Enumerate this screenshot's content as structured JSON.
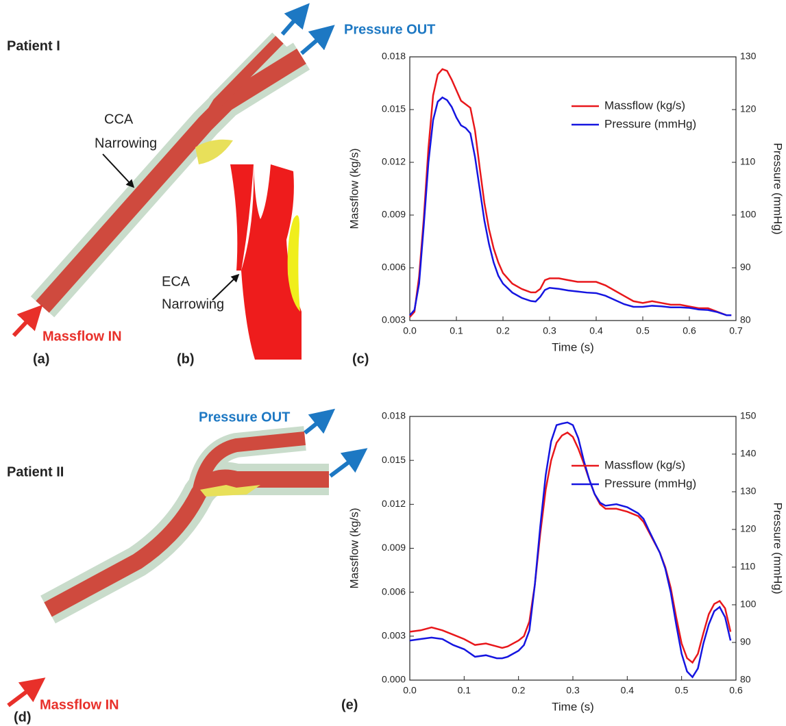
{
  "figure": {
    "patient1": "Patient I",
    "pressure_out_1": "Pressure OUT",
    "cca": [
      "CCA",
      "Narrowing"
    ],
    "eca": [
      "ECA",
      "Narrowing"
    ],
    "massflow_in_1": "Massflow IN",
    "label_a": "(a)",
    "label_b": "(b)",
    "label_c": "(c)",
    "patient2": "Patient II",
    "pressure_out_2": "Pressure OUT",
    "massflow_in_2": "Massflow IN",
    "label_d": "(d)",
    "label_e": "(e)"
  },
  "chart_data": [
    {
      "type": "line",
      "xlabel": "Time (s)",
      "ylabel": "Massflow (kg/s)",
      "y2label": "Pressure (mmHg)",
      "legend": "upper right",
      "x": [
        0,
        0.01,
        0.02,
        0.03,
        0.04,
        0.05,
        0.06,
        0.07,
        0.08,
        0.09,
        0.1,
        0.11,
        0.12,
        0.13,
        0.14,
        0.15,
        0.16,
        0.17,
        0.18,
        0.19,
        0.2,
        0.22,
        0.24,
        0.26,
        0.27,
        0.28,
        0.29,
        0.3,
        0.32,
        0.34,
        0.36,
        0.38,
        0.4,
        0.42,
        0.44,
        0.46,
        0.48,
        0.5,
        0.52,
        0.54,
        0.56,
        0.58,
        0.6,
        0.62,
        0.64,
        0.66,
        0.68,
        0.69
      ],
      "series": [
        {
          "name": "Massflow (kg/s)",
          "color": "#e8171b",
          "axis": "y",
          "values": [
            0.0032,
            0.0035,
            0.0055,
            0.0088,
            0.0128,
            0.0158,
            0.017,
            0.0173,
            0.0172,
            0.0167,
            0.0161,
            0.0155,
            0.0153,
            0.0151,
            0.0138,
            0.0117,
            0.0097,
            0.0082,
            0.0071,
            0.0063,
            0.0057,
            0.0051,
            0.0048,
            0.0046,
            0.0046,
            0.0048,
            0.0053,
            0.0054,
            0.0054,
            0.0053,
            0.0052,
            0.0052,
            0.0052,
            0.005,
            0.0047,
            0.0044,
            0.0041,
            0.004,
            0.0041,
            0.004,
            0.0039,
            0.0039,
            0.0038,
            0.0037,
            0.0037,
            0.0035,
            0.0033,
            0.0033
          ]
        },
        {
          "name": "Pressure (mmHg)",
          "color": "#1515e0",
          "axis": "y2",
          "values": [
            81,
            82,
            87,
            98,
            110,
            118,
            121.5,
            122.3,
            121.8,
            120.5,
            118.5,
            117,
            116.5,
            115.5,
            111,
            105,
            99,
            94.5,
            91,
            88.5,
            87,
            85.3,
            84.3,
            83.7,
            83.6,
            84.5,
            85.8,
            86.2,
            86,
            85.7,
            85.5,
            85.3,
            85.2,
            84.7,
            83.9,
            83.1,
            82.6,
            82.6,
            82.8,
            82.7,
            82.5,
            82.5,
            82.4,
            82.1,
            82,
            81.6,
            81,
            81
          ]
        }
      ],
      "xlim": [
        0,
        0.7
      ],
      "xticks": [
        {
          "value": 0,
          "label": "0.0"
        },
        0.1,
        0.2,
        0.3,
        0.4,
        0.5,
        0.6,
        0.7
      ],
      "ylim": [
        0.003,
        0.018
      ],
      "yticks": [
        0.003,
        0.006,
        0.009,
        0.012,
        0.015,
        0.018
      ],
      "y2lim": [
        80,
        130
      ],
      "y2ticks": [
        80,
        90,
        100,
        110,
        120,
        130
      ]
    },
    {
      "type": "line",
      "xlabel": "Time (s)",
      "ylabel": "Massflow (kg/s)",
      "y2label": "Pressure (mmHg)",
      "legend": "upper right",
      "x": [
        0,
        0.02,
        0.04,
        0.06,
        0.08,
        0.1,
        0.12,
        0.14,
        0.16,
        0.17,
        0.18,
        0.2,
        0.21,
        0.22,
        0.23,
        0.24,
        0.25,
        0.26,
        0.27,
        0.28,
        0.29,
        0.3,
        0.31,
        0.32,
        0.33,
        0.34,
        0.35,
        0.36,
        0.38,
        0.4,
        0.42,
        0.43,
        0.44,
        0.46,
        0.47,
        0.48,
        0.49,
        0.5,
        0.51,
        0.52,
        0.53,
        0.54,
        0.55,
        0.56,
        0.57,
        0.58,
        0.59
      ],
      "series": [
        {
          "name": "Massflow (kg/s)",
          "color": "#e8171b",
          "axis": "y",
          "values": [
            0.0033,
            0.0034,
            0.0036,
            0.0034,
            0.0031,
            0.0028,
            0.0024,
            0.0025,
            0.0023,
            0.0022,
            0.0023,
            0.0027,
            0.003,
            0.004,
            0.0065,
            0.01,
            0.013,
            0.015,
            0.0162,
            0.0167,
            0.0169,
            0.0166,
            0.0158,
            0.0148,
            0.0137,
            0.0127,
            0.012,
            0.0117,
            0.0117,
            0.0115,
            0.0112,
            0.0108,
            0.0101,
            0.0087,
            0.0077,
            0.0063,
            0.0043,
            0.0025,
            0.0015,
            0.0012,
            0.0018,
            0.0032,
            0.0045,
            0.0052,
            0.0054,
            0.0049,
            0.0033
          ]
        },
        {
          "name": "Pressure (mmHg)",
          "color": "#1515e0",
          "axis": "y2",
          "values": [
            90.5,
            90.9,
            91.3,
            90.9,
            89.3,
            88.2,
            86.2,
            86.6,
            85.8,
            85.8,
            86.2,
            87.8,
            89.3,
            93.2,
            105.3,
            120.8,
            134.4,
            143.4,
            147.7,
            148.1,
            148.4,
            147.7,
            144.2,
            138.3,
            133.3,
            129.4,
            127.1,
            126.3,
            126.7,
            125.9,
            124.3,
            122.8,
            119.7,
            113.8,
            109.6,
            103.3,
            94.8,
            87,
            82.3,
            80.8,
            83.1,
            89.7,
            94.8,
            98.3,
            99.4,
            96.7,
            90.5
          ]
        }
      ],
      "xlim": [
        0,
        0.6
      ],
      "xticks": [
        {
          "value": 0,
          "label": "0.0"
        },
        0.1,
        0.2,
        0.3,
        0.4,
        0.5,
        0.6
      ],
      "ylim": [
        0,
        0.018
      ],
      "yticks": [
        {
          "value": 0,
          "label": "0.000"
        },
        0.003,
        0.006,
        0.009,
        0.012,
        0.015,
        0.018
      ],
      "y2lim": [
        80,
        150
      ],
      "y2ticks": [
        80,
        90,
        100,
        110,
        120,
        130,
        140,
        150
      ]
    }
  ]
}
